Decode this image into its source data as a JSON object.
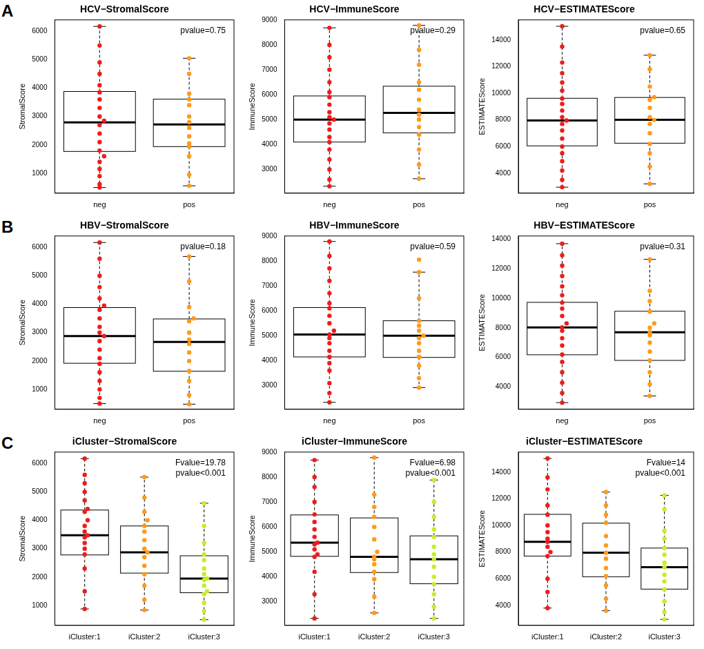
{
  "chart_data": [
    {
      "type": "box",
      "panel_label": "A",
      "title": "HCV−StromalScore",
      "y_label": "StromalScore",
      "categories": [
        "neg",
        "pos"
      ],
      "colors": [
        "#ee1c1c",
        "#ff9a1a"
      ],
      "ylim": [
        300,
        6400
      ],
      "yticks": [
        1000,
        2000,
        3000,
        4000,
        5000,
        6000
      ],
      "grid": false,
      "annotation": [
        "pvalue=0.75"
      ],
      "box": [
        {
          "whisker_low": 500,
          "q1": 1770,
          "median": 2790,
          "q3": 3880,
          "whisker_high": 6170
        },
        {
          "whisker_low": 560,
          "q1": 1940,
          "median": 2720,
          "q3": 3610,
          "whisker_high": 5050
        }
      ],
      "points": [
        [
          500,
          620,
          900,
          1150,
          1400,
          1600,
          1800,
          2100,
          2400,
          2700,
          2850,
          3000,
          3300,
          3600,
          3850,
          4100,
          4500,
          4900,
          5500,
          6170
        ],
        [
          560,
          950,
          1600,
          1950,
          2050,
          2300,
          2600,
          2800,
          3000,
          3400,
          3600,
          3800,
          4500,
          5050
        ]
      ]
    },
    {
      "type": "box",
      "title": "HCV−ImmuneScore",
      "y_label": "ImmuneScore",
      "categories": [
        "neg",
        "pos"
      ],
      "colors": [
        "#ee1c1c",
        "#ff9a1a"
      ],
      "ylim": [
        2050,
        9000
      ],
      "yticks": [
        3000,
        4000,
        5000,
        6000,
        7000,
        8000,
        9000
      ],
      "grid": false,
      "annotation": [
        "pvalue=0.29"
      ],
      "box": [
        {
          "whisker_low": 2330,
          "q1": 4100,
          "median": 5000,
          "q3": 5950,
          "whisker_high": 8680
        },
        {
          "whisker_low": 2630,
          "q1": 4470,
          "median": 5270,
          "q3": 6340,
          "whisker_high": 8780
        }
      ],
      "points": [
        [
          2330,
          2600,
          3000,
          3400,
          3800,
          4100,
          4300,
          4600,
          4850,
          5000,
          5100,
          5300,
          5600,
          5900,
          6100,
          6500,
          7000,
          7500,
          8000,
          8680
        ],
        [
          2630,
          3200,
          3800,
          4400,
          4700,
          5000,
          5200,
          5400,
          5800,
          6200,
          6500,
          7200,
          7800,
          8780
        ]
      ]
    },
    {
      "type": "box",
      "title": "HCV−ESTIMATEScore",
      "y_label": "ESTIMATEScore",
      "categories": [
        "neg",
        "pos"
      ],
      "colors": [
        "#ee1c1c",
        "#ff9a1a"
      ],
      "ylim": [
        2500,
        15500
      ],
      "yticks": [
        4000,
        6000,
        8000,
        10000,
        12000,
        14000
      ],
      "grid": false,
      "annotation": [
        "pvalue=0.65"
      ],
      "box": [
        {
          "whisker_low": 2950,
          "q1": 6050,
          "median": 7950,
          "q3": 9620,
          "whisker_high": 15020
        },
        {
          "whisker_low": 3200,
          "q1": 6250,
          "median": 8000,
          "q3": 9680,
          "whisker_high": 12850
        }
      ],
      "points": [
        [
          2950,
          3500,
          4200,
          4900,
          5500,
          6000,
          6600,
          7200,
          7700,
          7950,
          8200,
          8700,
          9200,
          9600,
          10200,
          10800,
          11500,
          12300,
          13500,
          15020
        ],
        [
          3200,
          4500,
          5500,
          6200,
          7000,
          7700,
          8000,
          8200,
          8900,
          9500,
          9700,
          10500,
          11800,
          12850
        ]
      ]
    },
    {
      "type": "box",
      "panel_label": "B",
      "title": "HBV−StromalScore",
      "y_label": "StromalScore",
      "categories": [
        "neg",
        "pos"
      ],
      "colors": [
        "#ee1c1c",
        "#ff9a1a"
      ],
      "ylim": [
        300,
        6400
      ],
      "yticks": [
        1000,
        2000,
        3000,
        4000,
        5000,
        6000
      ],
      "grid": false,
      "annotation": [
        "pvalue=0.18"
      ],
      "box": [
        {
          "whisker_low": 500,
          "q1": 1920,
          "median": 2880,
          "q3": 3880,
          "whisker_high": 6170
        },
        {
          "whisker_low": 480,
          "q1": 1640,
          "median": 2670,
          "q3": 3480,
          "whisker_high": 5680
        }
      ],
      "points": [
        [
          500,
          700,
          1000,
          1300,
          1600,
          1900,
          2100,
          2400,
          2700,
          2880,
          3000,
          3200,
          3500,
          3800,
          3950,
          4200,
          4600,
          5000,
          5600,
          6170
        ],
        [
          480,
          800,
          1300,
          1650,
          2000,
          2300,
          2600,
          2750,
          3000,
          3400,
          3500,
          3900,
          4800,
          5680
        ]
      ]
    },
    {
      "type": "box",
      "title": "HBV−ImmuneScore",
      "y_label": "ImmuneScore",
      "categories": [
        "neg",
        "pos"
      ],
      "colors": [
        "#ee1c1c",
        "#ff9a1a"
      ],
      "ylim": [
        2050,
        9000
      ],
      "yticks": [
        3000,
        4000,
        5000,
        6000,
        7000,
        8000,
        9000
      ],
      "grid": false,
      "annotation": [
        "pvalue=0.59"
      ],
      "box": [
        {
          "whisker_low": 2330,
          "q1": 4150,
          "median": 5050,
          "q3": 6130,
          "whisker_high": 8780
        },
        {
          "whisker_low": 2920,
          "q1": 4130,
          "median": 5000,
          "q3": 5600,
          "whisker_high": 7550
        }
      ],
      "points": [
        [
          2330,
          2700,
          3100,
          3600,
          3900,
          4150,
          4400,
          4700,
          4900,
          5050,
          5200,
          5500,
          5800,
          6100,
          6300,
          6700,
          7200,
          7700,
          8200,
          8780
        ],
        [
          2920,
          3300,
          3800,
          4150,
          4400,
          4700,
          4900,
          5000,
          5200,
          5400,
          5600,
          6500,
          7550,
          8050
        ]
      ]
    },
    {
      "type": "box",
      "title": "HBV−ESTIMATEScore",
      "y_label": "ESTIMATEScore",
      "categories": [
        "neg",
        "pos"
      ],
      "colors": [
        "#ee1c1c",
        "#ff9a1a"
      ],
      "ylim": [
        2500,
        14200
      ],
      "yticks": [
        4000,
        6000,
        8000,
        10000,
        12000,
        14000
      ],
      "grid": false,
      "annotation": [
        "pvalue=0.31"
      ],
      "box": [
        {
          "whisker_low": 2950,
          "q1": 6180,
          "median": 8030,
          "q3": 9720,
          "whisker_high": 13680
        },
        {
          "whisker_low": 3400,
          "q1": 5800,
          "median": 7700,
          "q3": 9120,
          "whisker_high": 12620
        }
      ],
      "points": [
        [
          2950,
          3600,
          4300,
          5000,
          5700,
          6200,
          6800,
          7300,
          7800,
          8030,
          8300,
          8800,
          9300,
          9700,
          10200,
          10800,
          11500,
          12200,
          12900,
          13680
        ],
        [
          3400,
          4200,
          5000,
          5800,
          6400,
          7000,
          7500,
          7700,
          8000,
          8300,
          9100,
          9800,
          10500,
          12620
        ]
      ]
    },
    {
      "type": "box",
      "panel_label": "C",
      "title": "iCluster−StromalScore",
      "y_label": "StromalScore",
      "categories": [
        "iCluster:1",
        "iCluster:2",
        "iCluster:3"
      ],
      "colors": [
        "#ee1c1c",
        "#ff9a1a",
        "#c5ee2a"
      ],
      "ylim": [
        300,
        6400
      ],
      "yticks": [
        1000,
        2000,
        3000,
        4000,
        5000,
        6000
      ],
      "grid": false,
      "annotation": [
        "Fvalue=19.78",
        "pvalue<0.001"
      ],
      "box": [
        {
          "whisker_low": 880,
          "q1": 2780,
          "median": 3470,
          "q3": 4360,
          "whisker_high": 6170
        },
        {
          "whisker_low": 840,
          "q1": 2140,
          "median": 2870,
          "q3": 3800,
          "whisker_high": 5520
        },
        {
          "whisker_low": 500,
          "q1": 1450,
          "median": 1950,
          "q3": 2750,
          "whisker_high": 4600
        }
      ],
      "points": [
        [
          880,
          1500,
          2300,
          2800,
          3000,
          3200,
          3400,
          3470,
          3600,
          3800,
          4000,
          4300,
          4400,
          4700,
          5000,
          5300,
          5600,
          6170
        ],
        [
          840,
          1200,
          1700,
          2100,
          2400,
          2700,
          2870,
          3000,
          3300,
          3600,
          3800,
          4000,
          4300,
          4800,
          5520
        ],
        [
          500,
          800,
          1100,
          1400,
          1500,
          1700,
          1900,
          1950,
          2100,
          2300,
          2600,
          2800,
          3200,
          3800,
          4600
        ]
      ]
    },
    {
      "type": "box",
      "title": "iCluster−ImmuneScore",
      "y_label": "ImmuneScore",
      "categories": [
        "iCluster:1",
        "iCluster:2",
        "iCluster:3"
      ],
      "colors": [
        "#ee1c1c",
        "#ff9a1a",
        "#c5ee2a"
      ],
      "ylim": [
        2050,
        9000
      ],
      "yticks": [
        3000,
        4000,
        5000,
        6000,
        7000,
        8000,
        9000
      ],
      "grid": false,
      "annotation": [
        "Fvalue=6.98",
        "pvalue<0.001"
      ],
      "box": [
        {
          "whisker_low": 2330,
          "q1": 4820,
          "median": 5370,
          "q3": 6480,
          "whisker_high": 8680
        },
        {
          "whisker_low": 2550,
          "q1": 4170,
          "median": 4800,
          "q3": 6360,
          "whisker_high": 8780
        },
        {
          "whisker_low": 2330,
          "q1": 3720,
          "median": 4700,
          "q3": 5640,
          "whisker_high": 7880
        }
      ],
      "points": [
        [
          2330,
          3300,
          4200,
          4800,
          4900,
          5100,
          5300,
          5370,
          5600,
          5900,
          6200,
          6500,
          7000,
          7600,
          8000,
          8680
        ],
        [
          2550,
          3200,
          3900,
          4200,
          4500,
          4700,
          4800,
          5000,
          5500,
          6000,
          6400,
          6800,
          7300,
          8780
        ],
        [
          2330,
          2800,
          3300,
          3700,
          4000,
          4400,
          4700,
          4900,
          5200,
          5600,
          5900,
          6400,
          7000,
          7880
        ]
      ]
    },
    {
      "type": "box",
      "title": "iCluster−ESTIMATEScore",
      "y_label": "ESTIMATEScore",
      "categories": [
        "iCluster:1",
        "iCluster:2",
        "iCluster:3"
      ],
      "colors": [
        "#ee1c1c",
        "#ff9a1a",
        "#c5ee2a"
      ],
      "ylim": [
        2500,
        15500
      ],
      "yticks": [
        4000,
        6000,
        8000,
        10000,
        12000,
        14000
      ],
      "grid": false,
      "annotation": [
        "Fvalue=14",
        "pvalue<0.001"
      ],
      "box": [
        {
          "whisker_low": 3800,
          "q1": 7700,
          "median": 8770,
          "q3": 10830,
          "whisker_high": 15020
        },
        {
          "whisker_low": 3600,
          "q1": 6150,
          "median": 7950,
          "q3": 10170,
          "whisker_high": 12500
        },
        {
          "whisker_low": 2950,
          "q1": 5220,
          "median": 6870,
          "q3": 8300,
          "whisker_high": 12250
        }
      ],
      "points": [
        [
          3800,
          5000,
          6000,
          7700,
          8000,
          8400,
          8770,
          9000,
          9500,
          10000,
          10800,
          11500,
          12700,
          13600,
          15020
        ],
        [
          3600,
          4500,
          5500,
          6200,
          6800,
          7500,
          7950,
          8500,
          9200,
          10200,
          10800,
          11500,
          12500
        ],
        [
          2950,
          3500,
          4300,
          5200,
          5800,
          6300,
          6870,
          7200,
          7800,
          8300,
          9000,
          9600,
          11200,
          12250
        ]
      ]
    }
  ]
}
